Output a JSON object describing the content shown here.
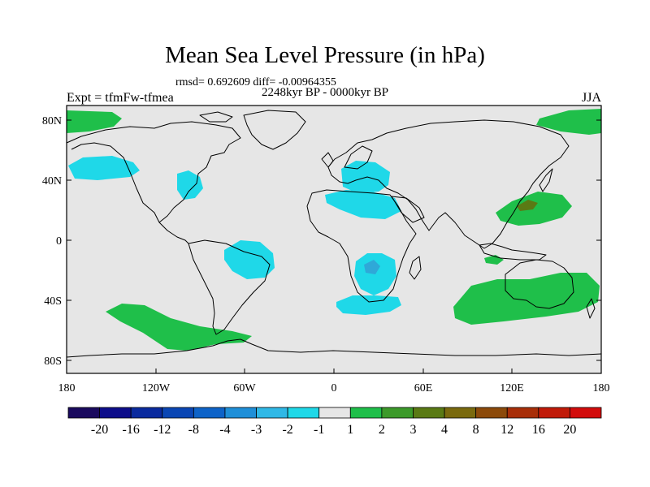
{
  "title": "Mean Sea Level Pressure (in hPa)",
  "stats": "rmsd= 0.692609 diff= -0.00964355",
  "period": "2248kyr BP - 0000kyr BP",
  "experiment": "Expt = tfmFw-tfmea",
  "season": "JJA",
  "axes": {
    "lat_labels": [
      "80N",
      "40N",
      "0",
      "40S",
      "80S"
    ],
    "lon_labels": [
      "180",
      "120W",
      "60W",
      "0",
      "60E",
      "120E",
      "180"
    ]
  },
  "colorbar": {
    "labels": [
      "-20",
      "-16",
      "-12",
      "-8",
      "-4",
      "-3",
      "-2",
      "-1",
      "1",
      "2",
      "3",
      "4",
      "8",
      "12",
      "16",
      "20"
    ],
    "colors": [
      "#1a0a5e",
      "#0d0d8a",
      "#0a2a9e",
      "#0a46b4",
      "#0e63c8",
      "#1f8fd8",
      "#2fb8e6",
      "#1fd8e8",
      "#e6e6e6",
      "#1fbf4a",
      "#3c9a2a",
      "#5a7a14",
      "#7a6a0e",
      "#8c4a0a",
      "#a82e08",
      "#c01a08",
      "#d20c0c"
    ]
  },
  "map_colors": {
    "background": "#e6e6e6",
    "negative_light": "#1fd8e8",
    "negative_mid": "#2fa8d8",
    "positive_light": "#1fbf4a",
    "positive_strong": "#5a7a14",
    "coast": "#000000"
  }
}
